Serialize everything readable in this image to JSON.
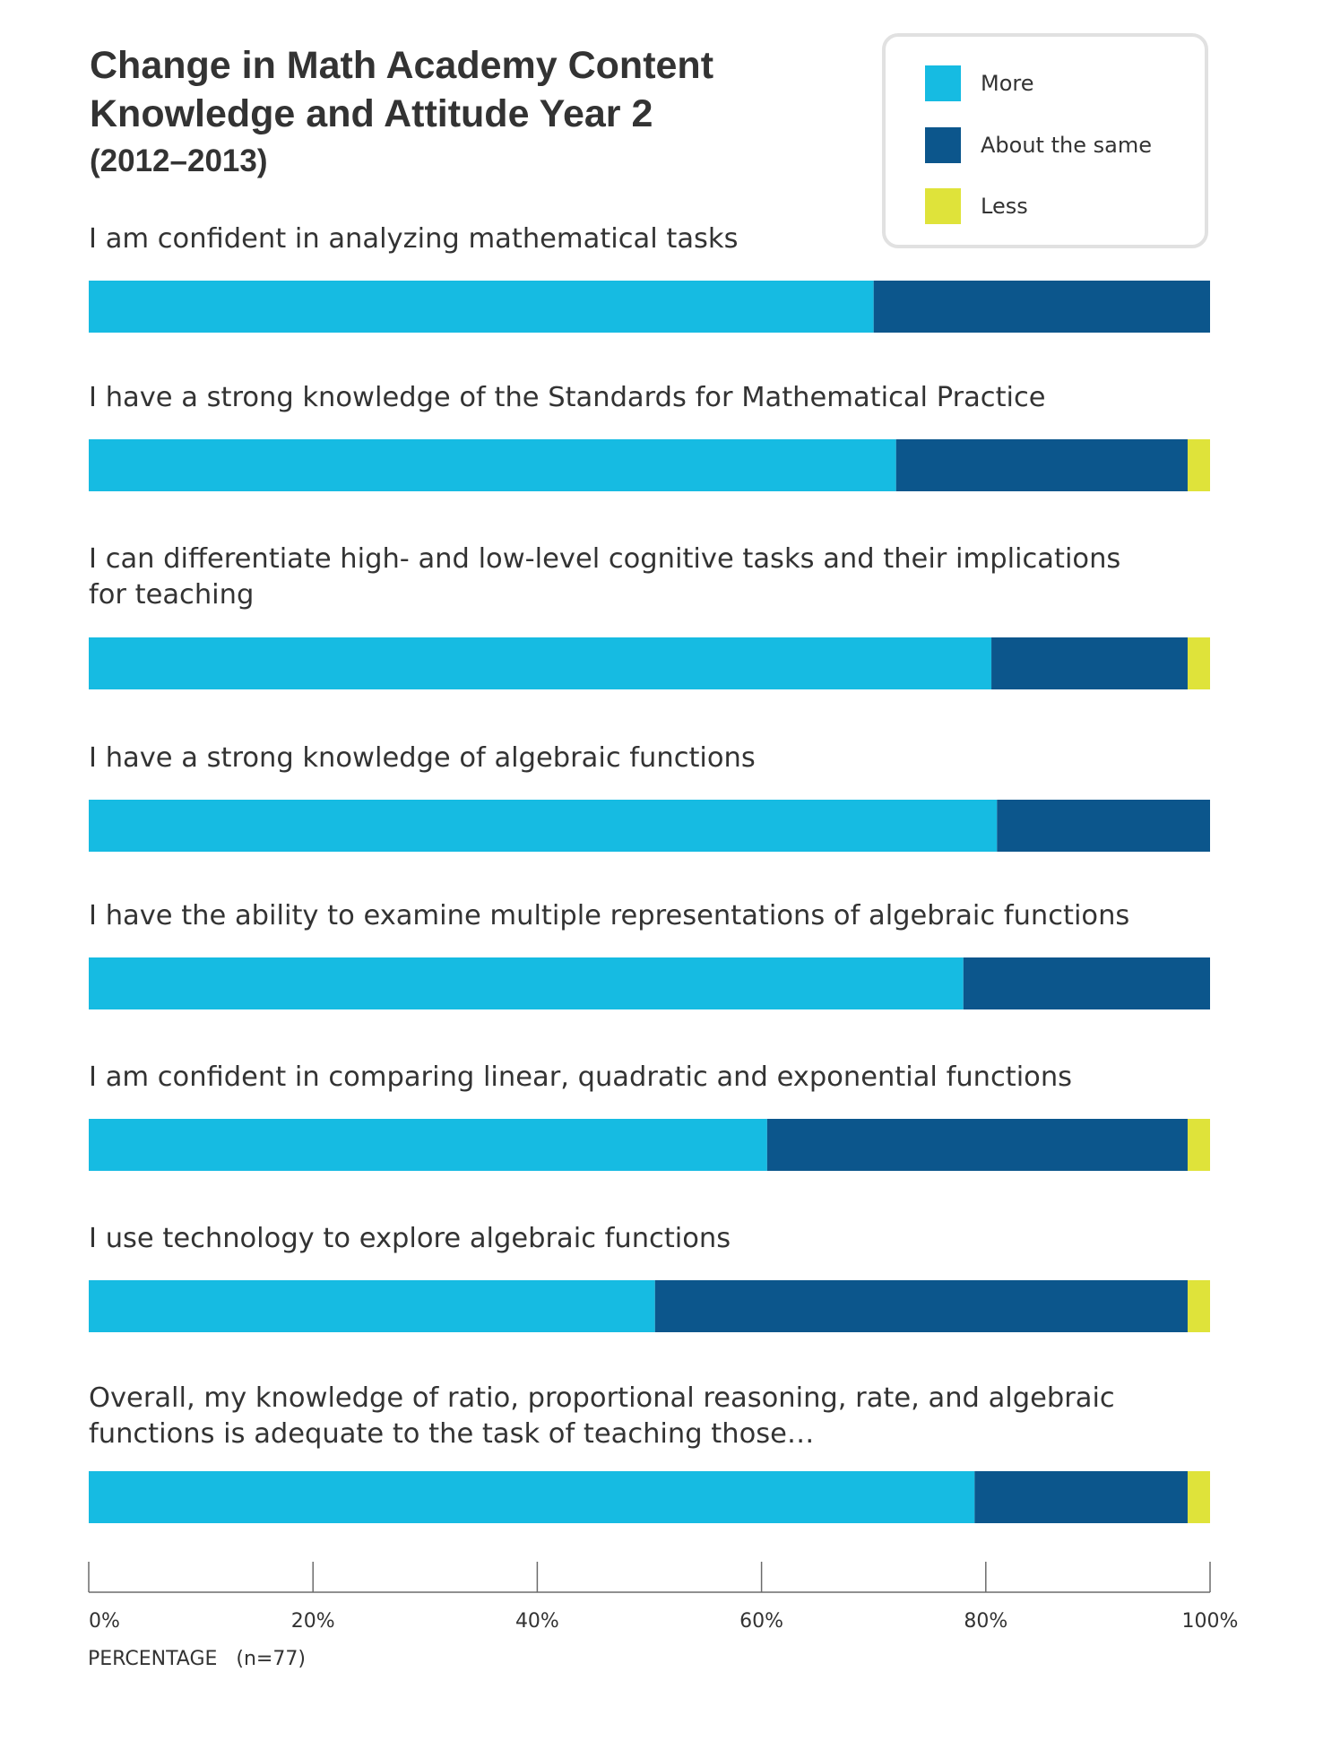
{
  "chart_data": {
    "type": "bar",
    "orientation": "horizontal",
    "stacked": true,
    "title": "Change in Math Academy Content Knowledge and Attitude Year 2",
    "title_lines": [
      "Change in Math Academy Content",
      "Knowledge and Attitude Year 2"
    ],
    "subtitle": "(2012–2013)",
    "xlabel": "PERCENTAGE   (n=77)",
    "xlim": [
      0,
      100
    ],
    "x_ticks": [
      0,
      20,
      40,
      60,
      80,
      100
    ],
    "x_tick_labels": [
      "0%",
      "20%",
      "40%",
      "60%",
      "80%",
      "100%"
    ],
    "grid": false,
    "legend_position": "top-right",
    "categories": [
      [
        "I am confident in analyzing mathematical tasks"
      ],
      [
        "I have a strong knowledge of the Standards for Mathematical Practice"
      ],
      [
        "I can differentiate high- and low-level cognitive tasks and their implications",
        "for teaching"
      ],
      [
        "I have a strong knowledge of algebraic functions"
      ],
      [
        "I have the ability to examine multiple representations of algebraic functions"
      ],
      [
        "I am confident in comparing linear, quadratic and exponential functions"
      ],
      [
        "I use technology to explore algebraic functions"
      ],
      [
        "Overall, my knowledge of ratio, proportional reasoning, rate, and algebraic",
        "functions is adequate to the task of teaching those…"
      ]
    ],
    "series": [
      {
        "name": "More",
        "color": "#16bbe2",
        "values": [
          70,
          72,
          80.5,
          81,
          78,
          60.5,
          50.5,
          79
        ]
      },
      {
        "name": "About the same",
        "color": "#0c568c",
        "values": [
          30,
          26,
          17.5,
          19,
          22,
          37.5,
          47.5,
          19
        ]
      },
      {
        "name": "Less",
        "color": "#dfe33a",
        "values": [
          0,
          2,
          2,
          0,
          0,
          2,
          2,
          2
        ]
      }
    ]
  }
}
